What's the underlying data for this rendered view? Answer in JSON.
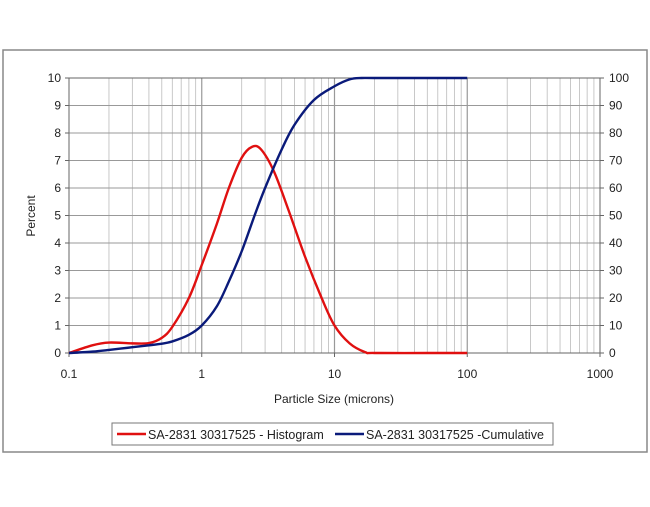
{
  "chart_data": {
    "type": "line",
    "title": "",
    "xlabel": "Particle Size (microns)",
    "ylabel": "Percent",
    "y2label": "",
    "x_scale": "log",
    "xlim": [
      0.1,
      1000
    ],
    "ylim": [
      0,
      10
    ],
    "y2lim": [
      0,
      100
    ],
    "x_ticks": [
      "0.1",
      "1",
      "10",
      "100",
      "1000"
    ],
    "y_ticks": [
      "0",
      "1",
      "2",
      "3",
      "4",
      "5",
      "6",
      "7",
      "8",
      "9",
      "10"
    ],
    "y2_ticks": [
      "0",
      "10",
      "20",
      "30",
      "40",
      "50",
      "60",
      "70",
      "80",
      "90",
      "100"
    ],
    "grid": true,
    "legend_position": "bottom",
    "series": [
      {
        "name": "SA-2831 30317525 - Histogram",
        "axis": "left",
        "color": "#e01010",
        "x": [
          0.1,
          0.15,
          0.2,
          0.3,
          0.4,
          0.5,
          0.6,
          0.8,
          1,
          1.3,
          1.6,
          2,
          2.4,
          2.8,
          3.5,
          4.5,
          6,
          8,
          10,
          13,
          17,
          20,
          50,
          100
        ],
        "y": [
          0,
          0.28,
          0.38,
          0.35,
          0.36,
          0.55,
          0.95,
          2.0,
          3.2,
          4.7,
          6.0,
          7.1,
          7.5,
          7.4,
          6.6,
          5.2,
          3.5,
          2.0,
          1.0,
          0.35,
          0.03,
          0,
          0,
          0
        ]
      },
      {
        "name": "SA-2831 30317525 -Cumulative",
        "axis": "right",
        "color": "#0a1a7a",
        "x": [
          0.1,
          0.15,
          0.2,
          0.3,
          0.4,
          0.5,
          0.6,
          0.8,
          1,
          1.3,
          1.6,
          2,
          2.5,
          3,
          4,
          5,
          7,
          10,
          13,
          16,
          20,
          50,
          100
        ],
        "y": [
          0,
          0.5,
          1.1,
          2.1,
          2.8,
          3.4,
          4.2,
          6.6,
          10,
          17,
          26,
          37,
          50,
          60,
          74,
          83,
          92,
          97,
          99.5,
          100,
          100,
          100,
          100
        ]
      }
    ]
  }
}
